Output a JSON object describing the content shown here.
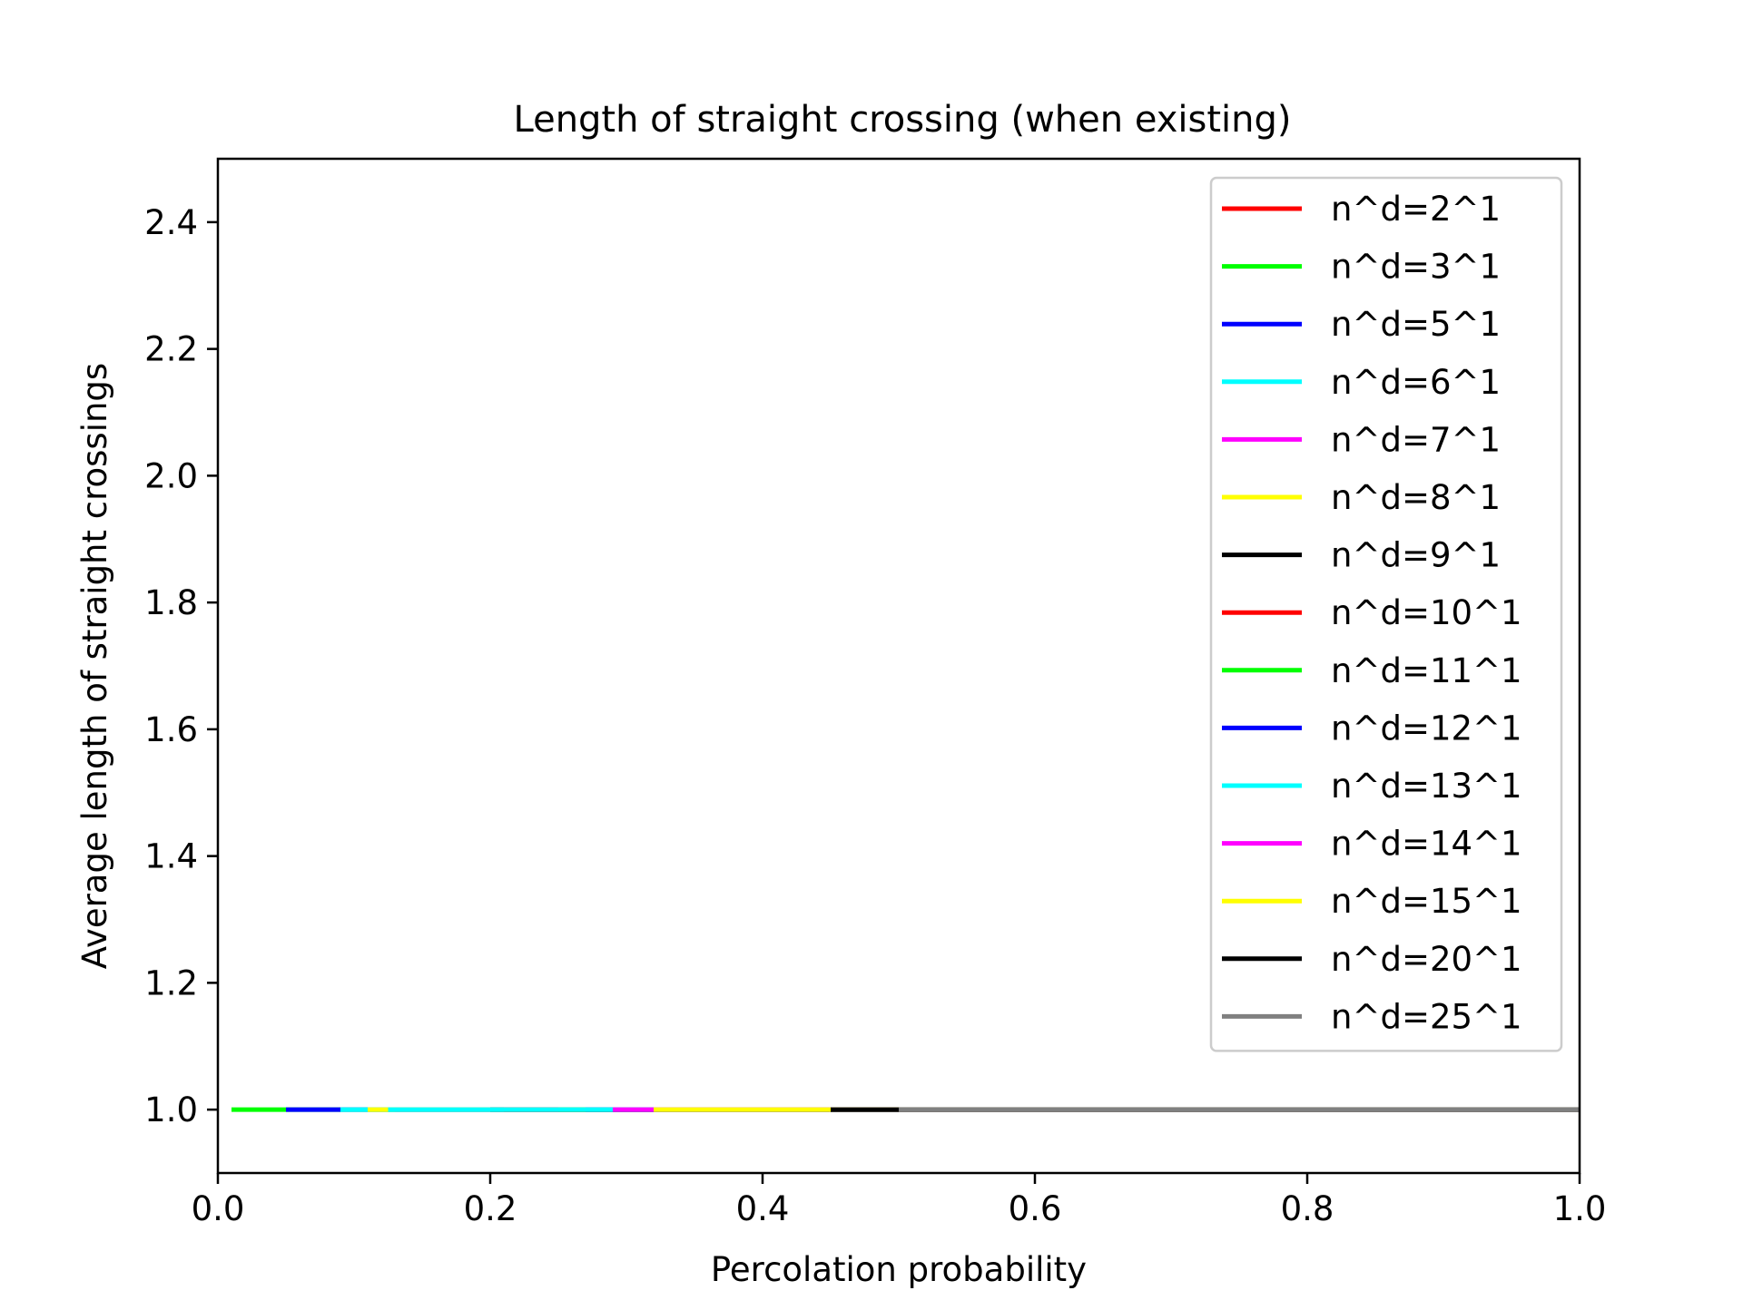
{
  "chart_data": {
    "type": "line",
    "title": "Length of straight crossing (when existing)",
    "xlabel": "Percolation probability",
    "ylabel": "Average length of straight crossings",
    "xlim": [
      0.0,
      1.0
    ],
    "ylim": [
      0.9,
      2.5
    ],
    "xticks": [
      0.0,
      0.2,
      0.4,
      0.6,
      0.8,
      1.0
    ],
    "xtick_labels": [
      "0.0",
      "0.2",
      "0.4",
      "0.6",
      "0.8",
      "1.0"
    ],
    "yticks": [
      1.0,
      1.2,
      1.4,
      1.6,
      1.8,
      2.0,
      2.2,
      2.4
    ],
    "ytick_labels": [
      "1.0",
      "1.2",
      "1.4",
      "1.6",
      "1.8",
      "2.0",
      "2.2",
      "2.4"
    ],
    "grid": false,
    "legend_position": "top-right",
    "series": [
      {
        "name": "n^d=2^1",
        "color": "#ff0000",
        "x": [
          0.5,
          1.0
        ],
        "y": [
          1.0,
          1.0
        ]
      },
      {
        "name": "n^d=3^1",
        "color": "#00ff00",
        "x": [
          0.01,
          1.0
        ],
        "y": [
          1.0,
          1.0
        ]
      },
      {
        "name": "n^d=5^1",
        "color": "#0000ff",
        "x": [
          0.05,
          1.0
        ],
        "y": [
          1.0,
          1.0
        ]
      },
      {
        "name": "n^d=6^1",
        "color": "#00ffff",
        "x": [
          0.09,
          1.0
        ],
        "y": [
          1.0,
          1.0
        ]
      },
      {
        "name": "n^d=7^1",
        "color": "#ff00ff",
        "x": [
          0.13,
          1.0
        ],
        "y": [
          1.0,
          1.0
        ]
      },
      {
        "name": "n^d=8^1",
        "color": "#ffff00",
        "x": [
          0.11,
          1.0
        ],
        "y": [
          1.0,
          1.0
        ]
      },
      {
        "name": "n^d=9^1",
        "color": "#000000",
        "x": [
          0.2,
          1.0
        ],
        "y": [
          1.0,
          1.0
        ]
      },
      {
        "name": "n^d=10^1",
        "color": "#ff0000",
        "x": [
          0.21,
          1.0
        ],
        "y": [
          1.0,
          1.0
        ]
      },
      {
        "name": "n^d=11^1",
        "color": "#00ff00",
        "x": [
          0.25,
          1.0
        ],
        "y": [
          1.0,
          1.0
        ]
      },
      {
        "name": "n^d=12^1",
        "color": "#0000ff",
        "x": [
          0.27,
          1.0
        ],
        "y": [
          1.0,
          1.0
        ]
      },
      {
        "name": "n^d=13^1",
        "color": "#00ffff",
        "x": [
          0.125,
          1.0
        ],
        "y": [
          1.0,
          1.0
        ]
      },
      {
        "name": "n^d=14^1",
        "color": "#ff00ff",
        "x": [
          0.29,
          1.0
        ],
        "y": [
          1.0,
          1.0
        ]
      },
      {
        "name": "n^d=15^1",
        "color": "#ffff00",
        "x": [
          0.32,
          1.0
        ],
        "y": [
          1.0,
          1.0
        ]
      },
      {
        "name": "n^d=20^1",
        "color": "#000000",
        "x": [
          0.45,
          1.0
        ],
        "y": [
          1.0,
          1.0
        ]
      },
      {
        "name": "n^d=25^1",
        "color": "#808080",
        "x": [
          0.5,
          1.0
        ],
        "y": [
          1.0,
          1.0
        ]
      }
    ]
  }
}
